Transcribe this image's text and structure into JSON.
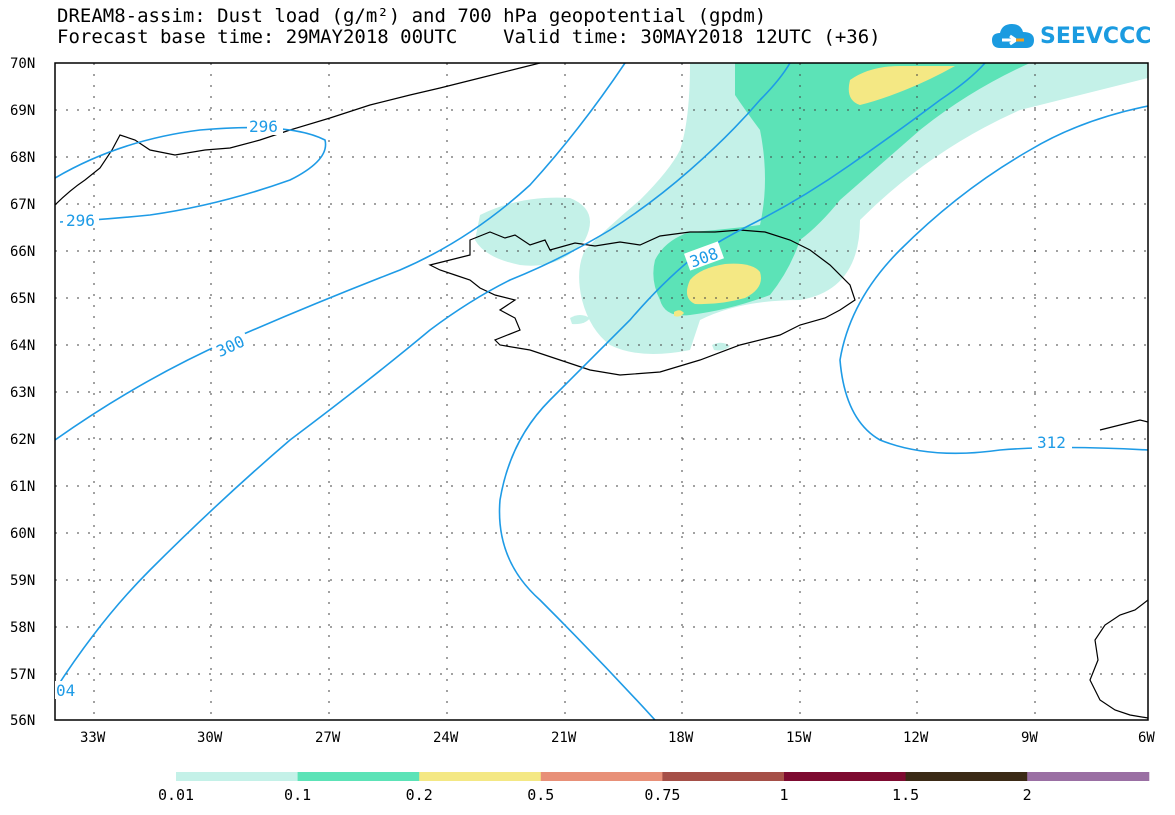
{
  "title_line1": "DREAM8-assim: Dust load (g/m²) and 700 hPa geopotential (gpdm)",
  "title_line2": "Forecast base time: 29MAY2018 00UTC    Valid time: 30MAY2018 12UTC (+36)",
  "logo_text": "SEEVCCC",
  "logo_icon": "cloud-icon",
  "lat_labels": [
    "70N",
    "69N",
    "68N",
    "67N",
    "66N",
    "65N",
    "64N",
    "63N",
    "62N",
    "61N",
    "60N",
    "59N",
    "58N",
    "57N",
    "56N"
  ],
  "lon_labels": [
    "33W",
    "30W",
    "27W",
    "24W",
    "21W",
    "18W",
    "15W",
    "12W",
    "9W",
    "6W"
  ],
  "contour_labels": [
    "296",
    "296",
    "300",
    "308",
    "312",
    "04"
  ],
  "legend": {
    "labels": [
      "0.01",
      "0.1",
      "0.2",
      "0.5",
      "0.75",
      "1",
      "1.5",
      "2"
    ],
    "colors": [
      "#c4f1e8",
      "#5ce3b7",
      "#f4e884",
      "#e89078",
      "#a54f47",
      "#7d0a30",
      "#3b2a16",
      "#9a6fa3"
    ]
  },
  "colors": {
    "contour": "#1e9be6",
    "coast": "#000000"
  }
}
